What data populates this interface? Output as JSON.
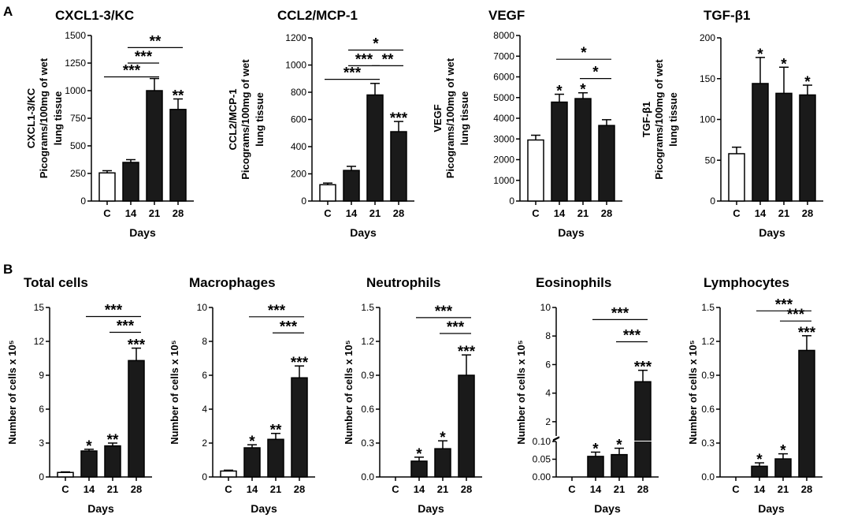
{
  "panel_labels": [
    "A",
    "B"
  ],
  "colors": {
    "control": "#ffffff",
    "treated": "#1a1a1a"
  },
  "chart_data": [
    {
      "id": "a1",
      "type": "bar",
      "title": "CXCL1-3/KC",
      "ylabel": [
        "CXCL1-3/KC",
        "Picograms/100mg of wet",
        "lung tissue"
      ],
      "xlabel": "Days",
      "categories": [
        "C",
        "14",
        "21",
        "28"
      ],
      "values": [
        255,
        350,
        1000,
        830
      ],
      "errors": [
        20,
        25,
        110,
        95
      ],
      "ylim": [
        0,
        1500
      ],
      "yticks": [
        0,
        250,
        500,
        750,
        1000,
        1250,
        1500
      ],
      "tick_labels": [
        "0",
        "250",
        "500",
        "750",
        "1000",
        "1250",
        "1500"
      ],
      "bar_stars": [
        "",
        "",
        "",
        "**"
      ],
      "brackets": [
        {
          "from": 1,
          "to": 3,
          "label": "**",
          "value": 1390
        },
        {
          "from": 1,
          "to": 2,
          "label": "***",
          "value": 1250
        },
        {
          "from": 0,
          "to": 2,
          "label": "***",
          "value": 1125
        }
      ]
    },
    {
      "id": "a2",
      "type": "bar",
      "title": "CCL2/MCP-1",
      "ylabel": [
        "CCL2/MCP-1",
        "Picograms/100mg of wet",
        "lung tissue"
      ],
      "xlabel": "Days",
      "categories": [
        "C",
        "14",
        "21",
        "28"
      ],
      "values": [
        120,
        225,
        780,
        510
      ],
      "errors": [
        12,
        30,
        85,
        75
      ],
      "ylim": [
        0,
        1200
      ],
      "yticks": [
        0,
        200,
        400,
        600,
        800,
        1000,
        1200
      ],
      "tick_labels": [
        "0",
        "200",
        "400",
        "600",
        "800",
        "1000",
        "1200"
      ],
      "bar_stars": [
        "",
        "",
        "",
        "***"
      ],
      "brackets": [
        {
          "from": 1,
          "to": 3,
          "label": "*",
          "value": 1110
        },
        {
          "from": 1,
          "to": 2,
          "label": "***",
          "value": 995
        },
        {
          "from": 2,
          "to": 3,
          "label": "**",
          "value": 995
        },
        {
          "from": 0,
          "to": 2,
          "label": "***",
          "value": 895
        }
      ]
    },
    {
      "id": "a3",
      "type": "bar",
      "title": "VEGF",
      "ylabel": [
        "VEGF",
        "Picograms/100mg of wet",
        "lung tissue"
      ],
      "xlabel": "Days",
      "categories": [
        "C",
        "14",
        "21",
        "28"
      ],
      "values": [
        2950,
        4780,
        4950,
        3650
      ],
      "errors": [
        230,
        380,
        280,
        280
      ],
      "ylim": [
        0,
        8000
      ],
      "yticks": [
        0,
        1000,
        2000,
        3000,
        4000,
        5000,
        6000,
        7000,
        8000
      ],
      "tick_labels": [
        "0",
        "1000",
        "2000",
        "3000",
        "4000",
        "5000",
        "6000",
        "7000",
        "8000"
      ],
      "bar_stars": [
        "",
        "*",
        "*",
        ""
      ],
      "brackets": [
        {
          "from": 1,
          "to": 3,
          "label": "*",
          "value": 6850
        },
        {
          "from": 2,
          "to": 3,
          "label": "*",
          "value": 5920
        }
      ]
    },
    {
      "id": "a4",
      "type": "bar",
      "title": "TGF-β1",
      "ylabel": [
        "TGF-β1",
        "Picograms/100mg of wet",
        "lung tissue"
      ],
      "xlabel": "Days",
      "categories": [
        "C",
        "14",
        "21",
        "28"
      ],
      "values": [
        58,
        144,
        132,
        130
      ],
      "errors": [
        8,
        32,
        32,
        12
      ],
      "ylim": [
        0,
        200
      ],
      "yticks": [
        0,
        50,
        100,
        150,
        200
      ],
      "tick_labels": [
        "0",
        "50",
        "100",
        "150",
        "200"
      ],
      "bar_stars": [
        "",
        "*",
        "*",
        "*"
      ],
      "brackets": []
    },
    {
      "id": "b1",
      "type": "bar",
      "title": "Total cells",
      "ylabel": [
        "Number of cells x 10⁵"
      ],
      "xlabel": "Days",
      "categories": [
        "C",
        "14",
        "21",
        "28"
      ],
      "values": [
        0.4,
        2.3,
        2.75,
        10.3
      ],
      "errors": [
        0.05,
        0.15,
        0.25,
        1.1
      ],
      "ylim": [
        0,
        15
      ],
      "yticks": [
        0,
        3,
        6,
        9,
        12,
        15
      ],
      "tick_labels": [
        "0",
        "3",
        "6",
        "9",
        "12",
        "15"
      ],
      "bar_stars": [
        "",
        "*",
        "**",
        "***"
      ],
      "brackets": [
        {
          "from": 1,
          "to": 3,
          "label": "***",
          "value": 14.2
        },
        {
          "from": 2,
          "to": 3,
          "label": "***",
          "value": 12.8
        }
      ]
    },
    {
      "id": "b2",
      "type": "bar",
      "title": "Macrophages",
      "ylabel": [
        "Number of cells x 10⁵"
      ],
      "xlabel": "Days",
      "categories": [
        "C",
        "14",
        "21",
        "28"
      ],
      "values": [
        0.35,
        1.72,
        2.22,
        5.85
      ],
      "errors": [
        0.05,
        0.18,
        0.35,
        0.7
      ],
      "ylim": [
        0,
        10
      ],
      "yticks": [
        0,
        2,
        4,
        6,
        8,
        10
      ],
      "tick_labels": [
        "0",
        "2",
        "4",
        "6",
        "8",
        "10"
      ],
      "bar_stars": [
        "",
        "*",
        "**",
        "***"
      ],
      "brackets": [
        {
          "from": 1,
          "to": 3,
          "label": "***",
          "value": 9.45
        },
        {
          "from": 2,
          "to": 3,
          "label": "***",
          "value": 8.5
        }
      ]
    },
    {
      "id": "b3",
      "type": "bar",
      "title": "Neutrophils",
      "ylabel": [
        "Number of cells x 10⁵"
      ],
      "xlabel": "Days",
      "categories": [
        "C",
        "14",
        "21",
        "28"
      ],
      "values": [
        0.0,
        0.14,
        0.25,
        0.9
      ],
      "errors": [
        0.0,
        0.035,
        0.07,
        0.18
      ],
      "ylim": [
        0,
        1.5
      ],
      "yticks": [
        0,
        0.3,
        0.6,
        0.9,
        1.2,
        1.5
      ],
      "tick_labels": [
        "0.0",
        "0.3",
        "0.6",
        "0.9",
        "1.2",
        "1.5"
      ],
      "bar_stars": [
        "",
        "*",
        "*",
        "***"
      ],
      "brackets": [
        {
          "from": 1,
          "to": 3,
          "label": "***",
          "value": 1.41
        },
        {
          "from": 2,
          "to": 3,
          "label": "***",
          "value": 1.27
        }
      ]
    },
    {
      "id": "b4",
      "type": "bar",
      "broken_axis": true,
      "title": "Eosinophils",
      "ylabel": [
        "Number of cells x 10⁵"
      ],
      "xlabel": "Days",
      "categories": [
        "C",
        "14",
        "21",
        "28"
      ],
      "values": [
        0.0,
        0.058,
        0.063,
        4.8
      ],
      "errors": [
        0.0,
        0.012,
        0.018,
        0.8
      ],
      "lower_ylim": [
        0,
        0.1
      ],
      "upper_ylim": [
        1,
        10
      ],
      "lower_ticks": [
        0,
        0.05,
        0.1
      ],
      "lower_tick_labels": [
        "0.00",
        "0.05",
        "0.10"
      ],
      "upper_ticks": [
        2,
        4,
        6,
        8,
        10
      ],
      "upper_tick_labels": [
        "2",
        "4",
        "6",
        "8",
        "10"
      ],
      "bar_stars": [
        "",
        "*",
        "*",
        "***"
      ],
      "brackets": [
        {
          "from": 1,
          "to": 3,
          "label": "***",
          "value": 9.15
        },
        {
          "from": 2,
          "to": 3,
          "label": "***",
          "value": 7.6
        }
      ]
    },
    {
      "id": "b5",
      "type": "bar",
      "title": "Lymphocytes",
      "ylabel": [
        "Number of cells x 10⁵"
      ],
      "xlabel": "Days",
      "categories": [
        "C",
        "14",
        "21",
        "28"
      ],
      "values": [
        0.0,
        0.095,
        0.16,
        1.12
      ],
      "errors": [
        0.0,
        0.03,
        0.045,
        0.13
      ],
      "ylim": [
        0,
        1.5
      ],
      "yticks": [
        0,
        0.3,
        0.6,
        0.9,
        1.2,
        1.5
      ],
      "tick_labels": [
        "0.0",
        "0.3",
        "0.6",
        "0.9",
        "1.2",
        "1.5"
      ],
      "bar_stars": [
        "",
        "*",
        "*",
        "***"
      ],
      "brackets": [
        {
          "from": 1,
          "to": 3,
          "label": "***",
          "value": 1.47
        },
        {
          "from": 2,
          "to": 3,
          "label": "***",
          "value": 1.38
        }
      ]
    }
  ]
}
